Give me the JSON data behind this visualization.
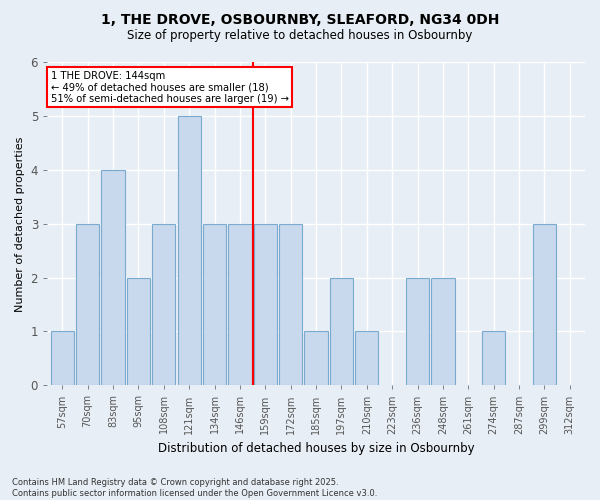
{
  "title1": "1, THE DROVE, OSBOURNBY, SLEAFORD, NG34 0DH",
  "title2": "Size of property relative to detached houses in Osbournby",
  "xlabel": "Distribution of detached houses by size in Osbournby",
  "ylabel": "Number of detached properties",
  "categories": [
    "57sqm",
    "70sqm",
    "83sqm",
    "95sqm",
    "108sqm",
    "121sqm",
    "134sqm",
    "146sqm",
    "159sqm",
    "172sqm",
    "185sqm",
    "197sqm",
    "210sqm",
    "223sqm",
    "236sqm",
    "248sqm",
    "261sqm",
    "274sqm",
    "287sqm",
    "299sqm",
    "312sqm"
  ],
  "values": [
    1,
    3,
    4,
    2,
    3,
    5,
    3,
    3,
    3,
    3,
    1,
    2,
    1,
    0,
    2,
    2,
    0,
    1,
    0,
    3,
    0
  ],
  "marker_index": 7,
  "marker_label": "1 THE DROVE: 144sqm",
  "annotation_line1": "← 49% of detached houses are smaller (18)",
  "annotation_line2": "51% of semi-detached houses are larger (19) →",
  "bar_color": "#c8d8ed",
  "bar_edge_color": "#7aaace",
  "marker_color": "red",
  "ylim": [
    0,
    6
  ],
  "yticks": [
    0,
    1,
    2,
    3,
    4,
    5,
    6
  ],
  "bg_color": "#e8eef5",
  "footer1": "Contains HM Land Registry data © Crown copyright and database right 2025.",
  "footer2": "Contains public sector information licensed under the Open Government Licence v3.0."
}
